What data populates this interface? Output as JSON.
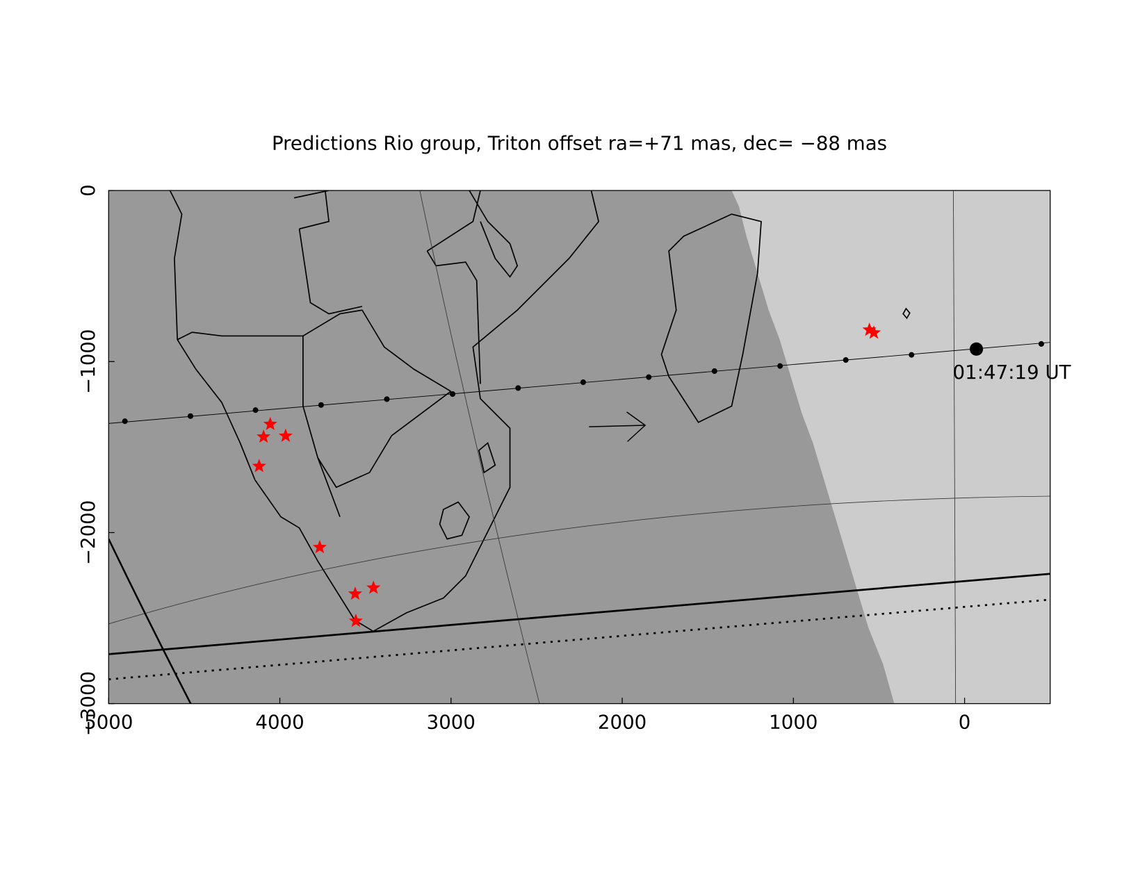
{
  "chart_data": {
    "type": "scatter",
    "title": "Predictions Rio group, Triton offset ra=+71 mas, dec= −88 mas",
    "xlim": [
      5000,
      -500
    ],
    "ylim": [
      -3000,
      0
    ],
    "xticks": [
      5000,
      4000,
      3000,
      2000,
      1000,
      0
    ],
    "yticks": [
      0,
      {
        "value": -1000,
        "label": "−1000"
      },
      {
        "value": -2000,
        "label": "−2000"
      },
      {
        "value": -3000,
        "label": "−3000"
      }
    ],
    "series": [
      {
        "style": "line",
        "color": "#000000",
        "x": [
          5000,
          -500
        ],
        "y": [
          -1362,
          -888
        ]
      },
      {
        "style": "thick-line",
        "color": "#000000",
        "x": [
          5000,
          -500
        ],
        "y": [
          -2711,
          -2241
        ]
      },
      {
        "style": "dotted-line",
        "color": "#000000",
        "x": [
          5000,
          -500
        ],
        "y": [
          -2858,
          -2392
        ]
      },
      {
        "style": "dots",
        "color": "#000000",
        "x": [
          4905,
          4522,
          4142,
          3759,
          3375,
          2991,
          2608,
          2228,
          1845,
          1461,
          1078,
          694,
          310,
          -448
        ],
        "y": [
          -1349,
          -1319,
          -1284,
          -1254,
          -1220,
          -1190,
          -1155,
          -1121,
          -1091,
          -1056,
          -1026,
          -991,
          -961,
          -897
        ]
      },
      {
        "style": "big-dot",
        "color": "#000000",
        "x": [
          -69
        ],
        "y": [
          -927
        ],
        "label": "01:47:19 UT"
      },
      {
        "style": "stars",
        "color": "#ff0000",
        "x": [
          4056,
          4095,
          3966,
          4121,
          3767,
          3560,
          3453,
          3556,
          556,
          530
        ],
        "y": [
          -1366,
          -1440,
          -1435,
          -1612,
          -2086,
          -2358,
          -2323,
          -2517,
          -815,
          -832
        ]
      }
    ]
  }
}
